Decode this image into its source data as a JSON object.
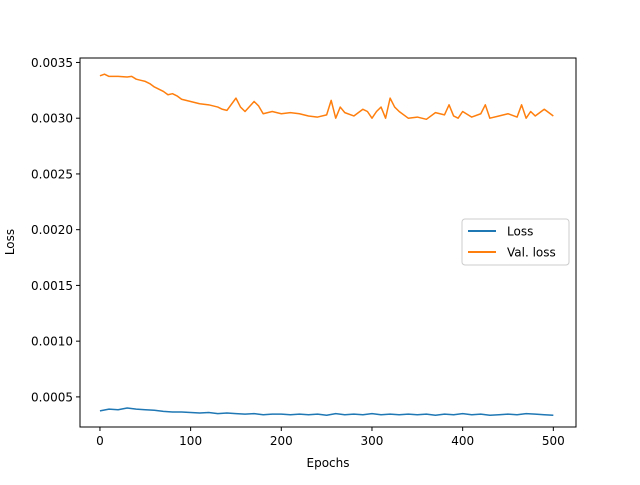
{
  "chart_data": {
    "type": "line",
    "title": "",
    "xlabel": "Epochs",
    "ylabel": "Loss",
    "xlim": [
      -22,
      525
    ],
    "ylim": [
      0.00023,
      0.00354
    ],
    "x_ticks": [
      0,
      100,
      200,
      300,
      400,
      500
    ],
    "x_tick_labels": [
      "0",
      "100",
      "200",
      "300",
      "400",
      "500"
    ],
    "y_ticks": [
      0.0005,
      0.001,
      0.0015,
      0.002,
      0.0025,
      0.003,
      0.0035
    ],
    "y_tick_labels": [
      "0.0005",
      "0.0010",
      "0.0015",
      "0.0020",
      "0.0025",
      "0.0030",
      "0.0035"
    ],
    "grid": false,
    "legend_position": "center-right",
    "series": [
      {
        "name": "Loss",
        "color": "#1f77b4",
        "x": [
          0,
          10,
          20,
          30,
          40,
          50,
          60,
          70,
          80,
          90,
          100,
          110,
          120,
          130,
          140,
          150,
          160,
          170,
          180,
          190,
          200,
          210,
          220,
          230,
          240,
          250,
          260,
          270,
          280,
          290,
          300,
          310,
          320,
          330,
          340,
          350,
          360,
          370,
          380,
          390,
          400,
          410,
          420,
          430,
          440,
          450,
          460,
          470,
          480,
          490,
          500
        ],
        "y": [
          0.000375,
          0.00039,
          0.000385,
          0.0004,
          0.00039,
          0.000385,
          0.00038,
          0.00037,
          0.000365,
          0.000365,
          0.00036,
          0.000355,
          0.00036,
          0.00035,
          0.000355,
          0.00035,
          0.000345,
          0.00035,
          0.00034,
          0.000345,
          0.000345,
          0.00034,
          0.000345,
          0.00034,
          0.000345,
          0.000335,
          0.00035,
          0.00034,
          0.000345,
          0.00034,
          0.00035,
          0.00034,
          0.000345,
          0.00034,
          0.000345,
          0.00034,
          0.000345,
          0.000335,
          0.000345,
          0.00034,
          0.00035,
          0.00034,
          0.000345,
          0.000335,
          0.00034,
          0.000345,
          0.00034,
          0.00035,
          0.000345,
          0.00034,
          0.000335
        ]
      },
      {
        "name": "Val. loss",
        "color": "#ff7f0e",
        "x": [
          0,
          5,
          10,
          20,
          30,
          35,
          40,
          45,
          50,
          55,
          60,
          70,
          75,
          80,
          85,
          90,
          100,
          110,
          120,
          130,
          135,
          140,
          150,
          155,
          160,
          170,
          175,
          180,
          190,
          200,
          210,
          220,
          230,
          240,
          250,
          255,
          260,
          265,
          270,
          280,
          290,
          295,
          300,
          305,
          310,
          315,
          320,
          325,
          330,
          340,
          350,
          360,
          370,
          380,
          385,
          390,
          395,
          400,
          410,
          420,
          425,
          430,
          440,
          450,
          460,
          465,
          470,
          475,
          480,
          490,
          500
        ],
        "y": [
          0.00338,
          0.003395,
          0.003375,
          0.003375,
          0.00337,
          0.003375,
          0.00335,
          0.00334,
          0.00333,
          0.00331,
          0.00328,
          0.00324,
          0.00321,
          0.00322,
          0.0032,
          0.00317,
          0.00315,
          0.00313,
          0.00312,
          0.0031,
          0.00308,
          0.00307,
          0.00318,
          0.0031,
          0.00306,
          0.00315,
          0.00311,
          0.00304,
          0.00306,
          0.00304,
          0.00305,
          0.00304,
          0.00302,
          0.00301,
          0.00303,
          0.00316,
          0.003,
          0.0031,
          0.00305,
          0.00302,
          0.00308,
          0.00306,
          0.003,
          0.00306,
          0.0031,
          0.003,
          0.00318,
          0.0031,
          0.00306,
          0.003,
          0.00301,
          0.00299,
          0.00305,
          0.00303,
          0.00312,
          0.00302,
          0.003,
          0.00306,
          0.00301,
          0.00304,
          0.00312,
          0.003,
          0.00302,
          0.00304,
          0.00301,
          0.00312,
          0.003,
          0.00306,
          0.00302,
          0.00308,
          0.00302
        ]
      }
    ]
  }
}
